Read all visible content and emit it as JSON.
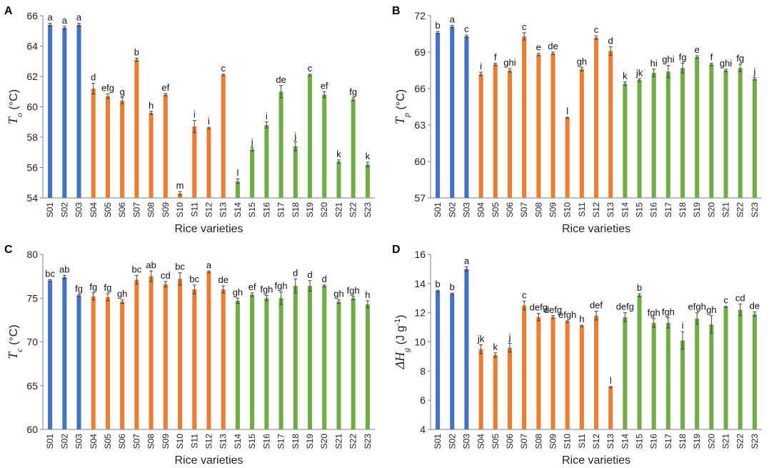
{
  "chart_data": [
    {
      "type": "bar",
      "panel": "A",
      "ylabel": {
        "symbol": "T",
        "sub": "o",
        "unit": " (°C)"
      },
      "xlabel": "Rice varieties",
      "ylim": [
        54,
        66
      ],
      "yticks": [
        54,
        56,
        58,
        60,
        62,
        64,
        66
      ],
      "categories": [
        "S01",
        "S02",
        "S03",
        "S04",
        "S05",
        "S06",
        "S07",
        "S08",
        "S09",
        "S10",
        "S11",
        "S12",
        "S13",
        "S14",
        "S15",
        "S16",
        "S17",
        "S18",
        "S19",
        "S20",
        "S21",
        "S22",
        "S23"
      ],
      "groups": [
        "blue",
        "blue",
        "blue",
        "orange",
        "orange",
        "orange",
        "orange",
        "orange",
        "orange",
        "orange",
        "orange",
        "orange",
        "orange",
        "green",
        "green",
        "green",
        "green",
        "green",
        "green",
        "green",
        "green",
        "green",
        "green"
      ],
      "values": [
        65.4,
        65.2,
        65.4,
        61.2,
        60.7,
        60.4,
        63.1,
        59.6,
        60.8,
        54.3,
        58.7,
        58.6,
        62.1,
        55.1,
        57.2,
        58.8,
        61.0,
        57.4,
        62.1,
        60.8,
        56.4,
        60.5,
        56.2
      ],
      "errors": [
        0.1,
        0.1,
        0.1,
        0.35,
        0.15,
        0.2,
        0.1,
        0.1,
        0.08,
        0.12,
        0.4,
        0.05,
        0.05,
        0.15,
        0.1,
        0.2,
        0.4,
        0.3,
        0.05,
        0.2,
        0.1,
        0.1,
        0.15
      ],
      "letters": [
        "a",
        "a",
        "a",
        "d",
        "efg",
        "g",
        "b",
        "h",
        "ef",
        "m",
        "i",
        "i",
        "c",
        "l",
        "j",
        "i",
        "de",
        "j",
        "c",
        "ef",
        "k",
        "fg",
        "k"
      ]
    },
    {
      "type": "bar",
      "panel": "B",
      "ylabel": {
        "symbol": "T",
        "sub": "p",
        "unit": " (°C)"
      },
      "xlabel": "Rice varieties",
      "ylim": [
        57,
        72
      ],
      "yticks": [
        57,
        60,
        63,
        66,
        69,
        72
      ],
      "categories": [
        "S01",
        "S02",
        "S03",
        "S04",
        "S05",
        "S06",
        "S07",
        "S08",
        "S09",
        "S10",
        "S11",
        "S12",
        "S13",
        "S14",
        "S15",
        "S16",
        "S17",
        "S18",
        "S19",
        "S20",
        "S21",
        "S22",
        "S23"
      ],
      "groups": [
        "blue",
        "blue",
        "blue",
        "orange",
        "orange",
        "orange",
        "orange",
        "orange",
        "orange",
        "orange",
        "orange",
        "orange",
        "orange",
        "green",
        "green",
        "green",
        "green",
        "green",
        "green",
        "green",
        "green",
        "green",
        "green"
      ],
      "values": [
        70.6,
        71.1,
        70.3,
        67.2,
        68.0,
        67.5,
        70.3,
        68.8,
        68.9,
        63.6,
        67.6,
        70.2,
        69.1,
        66.4,
        66.7,
        67.3,
        67.4,
        67.7,
        68.6,
        68.0,
        67.5,
        67.7,
        66.8
      ],
      "errors": [
        0.1,
        0.1,
        0.1,
        0.15,
        0.1,
        0.15,
        0.3,
        0.1,
        0.1,
        0.05,
        0.15,
        0.15,
        0.35,
        0.15,
        0.1,
        0.3,
        0.5,
        0.4,
        0.1,
        0.1,
        0.1,
        0.3,
        0.1
      ],
      "letters": [
        "b",
        "a",
        "c",
        "i",
        "f",
        "ghi",
        "c",
        "e",
        "de",
        "l",
        "gh",
        "c",
        "d",
        "k",
        "jk",
        "hi",
        "ghi",
        "fg",
        "e",
        "f",
        "ghi",
        "fg",
        "j"
      ]
    },
    {
      "type": "bar",
      "panel": "C",
      "ylabel": {
        "symbol": "T",
        "sub": "c",
        "unit": " (°C)"
      },
      "xlabel": "Rice varieties",
      "ylim": [
        60,
        80
      ],
      "yticks": [
        60,
        65,
        70,
        75,
        80
      ],
      "categories": [
        "S01",
        "S02",
        "S03",
        "S04",
        "S05",
        "S06",
        "S07",
        "S08",
        "S09",
        "S10",
        "S11",
        "S12",
        "S13",
        "S14",
        "S15",
        "S16",
        "S17",
        "S18",
        "S19",
        "S20",
        "S21",
        "S22",
        "S23"
      ],
      "groups": [
        "blue",
        "blue",
        "blue",
        "orange",
        "orange",
        "orange",
        "orange",
        "orange",
        "orange",
        "orange",
        "orange",
        "orange",
        "orange",
        "green",
        "green",
        "green",
        "green",
        "green",
        "green",
        "green",
        "green",
        "green",
        "green"
      ],
      "values": [
        77.0,
        77.4,
        75.3,
        75.2,
        75.1,
        74.6,
        77.1,
        77.5,
        76.6,
        77.2,
        76.0,
        78.0,
        76.0,
        74.7,
        75.4,
        75.0,
        75.0,
        76.4,
        76.4,
        76.4,
        74.6,
        75.0,
        74.3
      ],
      "errors": [
        0.1,
        0.2,
        0.1,
        0.4,
        0.4,
        0.2,
        0.5,
        0.6,
        0.3,
        0.7,
        0.5,
        0.1,
        0.4,
        0.3,
        0.2,
        0.3,
        0.7,
        0.8,
        0.6,
        0.1,
        0.2,
        0.2,
        0.4
      ],
      "letters": [
        "bc",
        "ab",
        "fg",
        "fg",
        "fg",
        "gh",
        "bc",
        "ab",
        "cd",
        "bc",
        "bc",
        "a",
        "de",
        "gh",
        "ef",
        "fgh",
        "fgh",
        "d",
        "d",
        "d",
        "gh",
        "fgh",
        "h"
      ]
    },
    {
      "type": "bar",
      "panel": "D",
      "ylabel": {
        "symbol": "ΔH",
        "sub": "g",
        "unit": " (J g",
        "sup": "-1",
        "close": ")"
      },
      "xlabel": "Rice varieties",
      "ylim": [
        4,
        16
      ],
      "yticks": [
        4,
        6,
        8,
        10,
        12,
        14,
        16
      ],
      "categories": [
        "S01",
        "S02",
        "S03",
        "S04",
        "S05",
        "S06",
        "S07",
        "S08",
        "S09",
        "S10",
        "S11",
        "S12",
        "S13",
        "S14",
        "S15",
        "S16",
        "S17",
        "S18",
        "S19",
        "S20",
        "S21",
        "S22",
        "S23"
      ],
      "groups": [
        "blue",
        "blue",
        "blue",
        "orange",
        "orange",
        "orange",
        "orange",
        "orange",
        "orange",
        "orange",
        "orange",
        "orange",
        "orange",
        "green",
        "green",
        "green",
        "green",
        "green",
        "green",
        "green",
        "green",
        "green",
        "green"
      ],
      "values": [
        13.5,
        13.3,
        15.0,
        9.5,
        9.1,
        9.6,
        12.5,
        11.7,
        11.7,
        11.4,
        11.1,
        11.8,
        6.9,
        11.7,
        13.2,
        11.3,
        11.3,
        10.1,
        11.6,
        11.2,
        12.4,
        12.2,
        11.9
      ],
      "errors": [
        0.05,
        0.05,
        0.15,
        0.3,
        0.15,
        0.3,
        0.3,
        0.25,
        0.1,
        0.05,
        0.05,
        0.3,
        0.05,
        0.3,
        0.1,
        0.3,
        0.35,
        0.6,
        0.4,
        0.6,
        0.05,
        0.4,
        0.15
      ],
      "letters": [
        "b",
        "b",
        "a",
        "jk",
        "k",
        "j",
        "c",
        "defg",
        "defg",
        "efgh",
        "h",
        "def",
        "l",
        "defg",
        "b",
        "fgh",
        "fgh",
        "i",
        "efgh",
        "gh",
        "c",
        "cd",
        "de"
      ]
    }
  ],
  "colors": {
    "blue": "#4472c4",
    "orange": "#ed7d31",
    "green": "#70ad47",
    "axis": "#7f7f7f",
    "error": "#404040"
  }
}
